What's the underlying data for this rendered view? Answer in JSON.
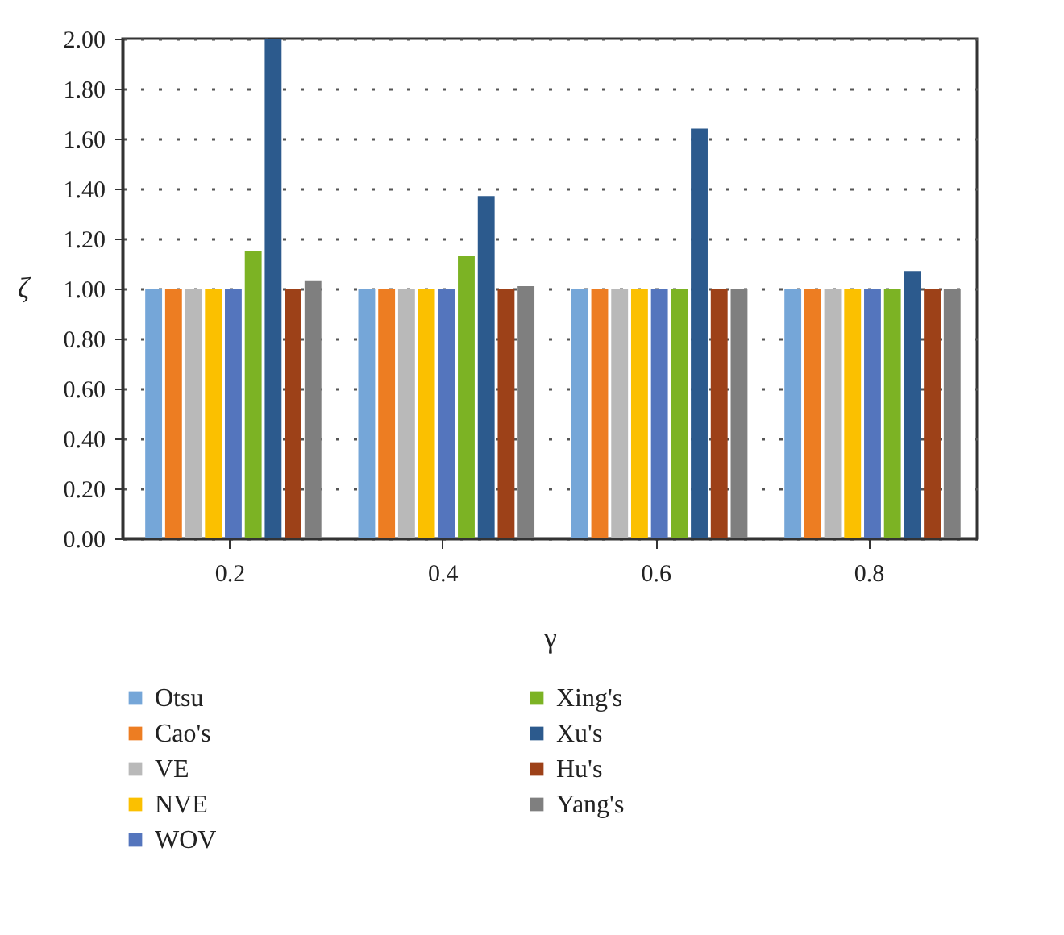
{
  "chart_data": {
    "type": "bar",
    "xlabel": "γ",
    "ylabel": "ζ",
    "categories": [
      "0.2",
      "0.4",
      "0.6",
      "0.8"
    ],
    "series": [
      {
        "name": "Otsu",
        "color": "#75a6d8",
        "values": [
          1.0,
          1.0,
          1.0,
          1.0
        ]
      },
      {
        "name": "Cao's",
        "color": "#ed7d22",
        "values": [
          1.0,
          1.0,
          1.0,
          1.0
        ]
      },
      {
        "name": "VE",
        "color": "#b9b9b9",
        "values": [
          1.0,
          1.0,
          1.0,
          1.0
        ]
      },
      {
        "name": "NVE",
        "color": "#fbc000",
        "values": [
          1.0,
          1.0,
          1.0,
          1.0
        ]
      },
      {
        "name": "WOV",
        "color": "#5475bd",
        "values": [
          1.0,
          1.0,
          1.0,
          1.0
        ]
      },
      {
        "name": "Xing's",
        "color": "#7cb324",
        "values": [
          1.15,
          1.13,
          1.0,
          1.0
        ]
      },
      {
        "name": "Xu's",
        "color": "#2c5a8d",
        "values": [
          2.0,
          1.37,
          1.64,
          1.07
        ]
      },
      {
        "name": "Hu's",
        "color": "#9d4118",
        "values": [
          1.0,
          1.0,
          1.0,
          1.0
        ]
      },
      {
        "name": "Yang's",
        "color": "#7f7f7f",
        "values": [
          1.03,
          1.01,
          1.0,
          1.0
        ]
      }
    ],
    "ylim": [
      0,
      2
    ],
    "yticks": [
      {
        "value": 0,
        "label": "0.00"
      },
      {
        "value": 0.2,
        "label": "0.20"
      },
      {
        "value": 0.4,
        "label": "0.40"
      },
      {
        "value": 0.6,
        "label": "0.60"
      },
      {
        "value": 0.8,
        "label": "0.80"
      },
      {
        "value": 1,
        "label": "1.00"
      },
      {
        "value": 1.2,
        "label": "1.20"
      },
      {
        "value": 1.4,
        "label": "1.40"
      },
      {
        "value": 1.6,
        "label": "1.60"
      },
      {
        "value": 1.8,
        "label": "1.80"
      },
      {
        "value": 2,
        "label": "2.00"
      }
    ],
    "grid": "y",
    "legend": "bottom"
  }
}
